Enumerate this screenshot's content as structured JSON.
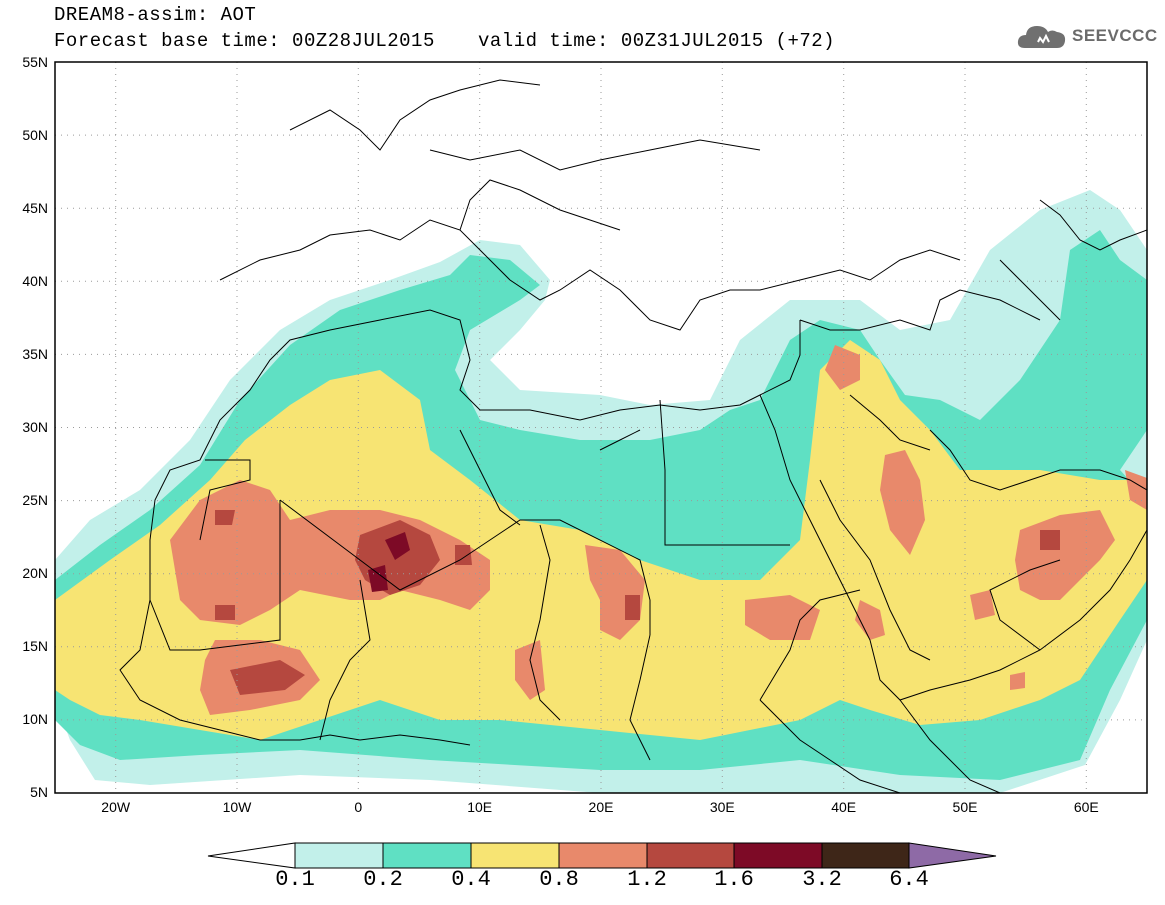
{
  "header": {
    "title": "DREAM8-assim: AOT",
    "base_time": "Forecast base time: 00Z28JUL2015",
    "valid_time": "valid time: 00Z31JUL2015 (+72)"
  },
  "logo": {
    "text": "SEEVCCC",
    "icon": "cloud-icon"
  },
  "map": {
    "lat_labels": [
      "55N",
      "50N",
      "45N",
      "40N",
      "35N",
      "30N",
      "25N",
      "20N",
      "15N",
      "10N",
      "5N"
    ],
    "lon_labels": [
      "20W",
      "10W",
      "0",
      "10E",
      "20E",
      "30E",
      "40E",
      "50E",
      "60E"
    ],
    "lat_range": [
      5,
      55
    ],
    "lon_range": [
      -25,
      65
    ],
    "grid": "dotted"
  },
  "colorbar": {
    "levels": [
      "0.1",
      "0.2",
      "0.4",
      "0.8",
      "1.2",
      "1.6",
      "3.2",
      "6.4"
    ],
    "colors": [
      "#c2f0ea",
      "#5fe0c3",
      "#f7e473",
      "#e8896b",
      "#b5483f",
      "#7d0a26",
      "#3e2618",
      "#8e6aa6"
    ]
  },
  "field_colors": {
    "c1": "#c2f0ea",
    "c2": "#5fe0c3",
    "c3": "#f7e473",
    "c4": "#e8896b",
    "c5": "#b5483f",
    "c6": "#7d0a26"
  }
}
